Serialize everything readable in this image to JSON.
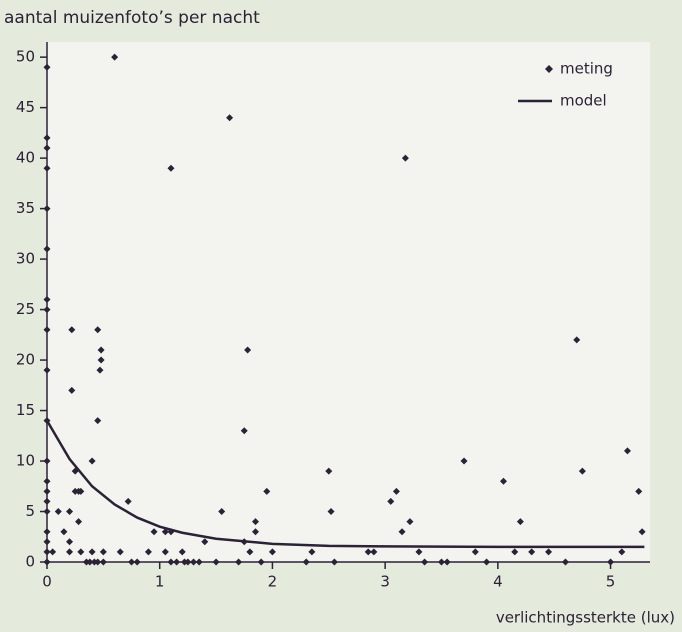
{
  "chart_data": {
    "type": "scatter",
    "title": "aantal muizenfoto’s per nacht",
    "xlabel": "verlichtingssterkte (lux)",
    "xlim": [
      0,
      5.35
    ],
    "ylim": [
      0,
      51.5
    ],
    "xticks": [
      0,
      1,
      2,
      3,
      4,
      5
    ],
    "yticks": [
      0,
      5,
      10,
      15,
      20,
      25,
      30,
      35,
      40,
      45,
      50
    ],
    "legend": "top-right",
    "series": [
      {
        "name": "meting",
        "style": "markers",
        "color": "#2b2236",
        "x": [
          0,
          0,
          0,
          0,
          0,
          0,
          0,
          0,
          0,
          0,
          0,
          0,
          0,
          0,
          0,
          0,
          0,
          0,
          0,
          0,
          0.05,
          0.1,
          0.15,
          0.2,
          0.22,
          0.22,
          0.2,
          0.25,
          0.25,
          0.28,
          0.3,
          0.28,
          0.3,
          0.2,
          0.35,
          0.4,
          0.4,
          0.45,
          0.45,
          0.48,
          0.48,
          0.47,
          0.45,
          0.5,
          0.5,
          0.38,
          0.42,
          0.6,
          0.65,
          0.72,
          0.75,
          0.8,
          0.9,
          0.95,
          1.05,
          1.1,
          1.1,
          1.05,
          1.1,
          1.15,
          1.2,
          1.22,
          1.25,
          1.3,
          1.35,
          1.4,
          1.5,
          1.55,
          1.62,
          1.7,
          1.75,
          1.78,
          1.75,
          1.8,
          1.85,
          1.85,
          1.9,
          1.95,
          2.0,
          2.3,
          2.35,
          2.5,
          2.52,
          2.55,
          2.85,
          2.9,
          3.05,
          3.1,
          3.15,
          3.18,
          3.22,
          3.3,
          3.35,
          3.5,
          3.55,
          3.7,
          3.8,
          3.9,
          4.05,
          4.15,
          4.2,
          4.3,
          4.45,
          4.6,
          4.7,
          4.75,
          5.0,
          5.1,
          5.15,
          5.25,
          5.28
        ],
        "values": [
          49,
          42,
          41,
          39,
          35,
          31,
          26,
          25,
          23,
          19,
          14,
          10,
          8,
          7,
          6,
          5,
          3,
          2,
          1,
          0,
          1,
          5,
          3,
          2,
          23,
          17,
          5,
          9,
          7,
          7,
          7,
          4,
          1,
          1,
          0,
          10,
          1,
          0,
          23,
          21,
          20,
          19,
          14,
          1,
          0,
          0,
          0,
          50,
          1,
          6,
          0,
          0,
          1,
          3,
          3,
          39,
          3,
          1,
          0,
          0,
          1,
          0,
          0,
          0,
          0,
          2,
          0,
          5,
          44,
          0,
          13,
          21,
          2,
          1,
          3,
          4,
          0,
          7,
          1,
          0,
          1,
          9,
          5,
          0,
          1,
          1,
          6,
          7,
          3,
          40,
          4,
          1,
          0,
          0,
          0,
          10,
          1,
          0,
          8,
          1,
          4,
          1,
          1,
          0,
          22,
          9,
          0,
          1,
          11,
          7,
          3
        ]
      },
      {
        "name": "model",
        "style": "line",
        "color": "#2b2236",
        "x": [
          0,
          0.2,
          0.4,
          0.6,
          0.8,
          1.0,
          1.2,
          1.5,
          2,
          2.5,
          3,
          4,
          5,
          5.3
        ],
        "values": [
          14,
          10.2,
          7.5,
          5.7,
          4.4,
          3.5,
          2.9,
          2.3,
          1.8,
          1.6,
          1.55,
          1.5,
          1.5,
          1.5
        ]
      }
    ]
  }
}
